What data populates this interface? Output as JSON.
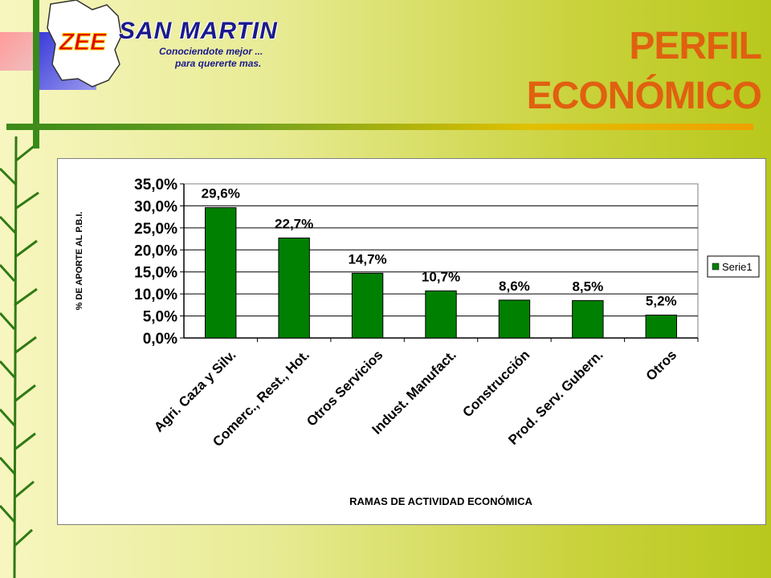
{
  "header": {
    "logo_letters": "ZEE",
    "logo_name": "SAN MARTIN",
    "logo_tagline_1": "Conociendote mejor ...",
    "logo_tagline_2": "para quererte mas.",
    "title_line_1": "PERFIL",
    "title_line_2": "ECONÓMICO"
  },
  "colors": {
    "bar": "#008000",
    "title": "#e06010",
    "logo_text": "#1a1a8c"
  },
  "chart_data": {
    "type": "bar",
    "categories": [
      "Agri. Caza y Silv.",
      "Comerc., Rest., Hot.",
      "Otros Servicios",
      "Indust. Manufact.",
      "Construcción",
      "Prod. Serv. Gubern.",
      "Otros"
    ],
    "series": [
      {
        "name": "Serie1",
        "values": [
          29.6,
          22.7,
          14.7,
          10.7,
          8.6,
          8.5,
          5.2
        ]
      }
    ],
    "data_labels": [
      "29,6%",
      "22,7%",
      "14,7%",
      "10,7%",
      "8,6%",
      "8,5%",
      "5,2%"
    ],
    "y_ticks": [
      0,
      5,
      10,
      15,
      20,
      25,
      30,
      35
    ],
    "y_tick_labels": [
      "0,0%",
      "5,0%",
      "10,0%",
      "15,0%",
      "20,0%",
      "25,0%",
      "30,0%",
      "35,0%"
    ],
    "ylim": [
      0,
      35
    ],
    "xlabel": "RAMAS DE ACTIVIDAD ECONÓMICA",
    "ylabel": "% DE APORTE AL P.B.I.",
    "title": "",
    "legend": "right",
    "grid": true
  }
}
